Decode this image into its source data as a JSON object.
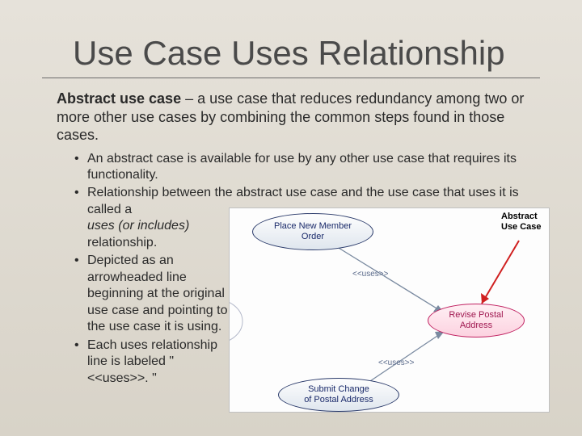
{
  "title": "Use Case Uses Relationship",
  "lead_bold": "Abstract use case",
  "lead_rest": " – a use case that reduces redundancy among two or more other use cases by combining the common steps found in those cases.",
  "bullets": {
    "b1": "An abstract case is available for use by any other use case that requires its functionality.",
    "b2a": "Relationship between the abstract use case and the use case that uses it is called a ",
    "b2_italic": "uses (or includes)",
    "b2b": " relationship.",
    "b3": "Depicted as an arrowheaded line beginning at the original use case and pointing to the use case it is using.",
    "b4": "Each uses relationship line is labeled \"<<uses>>. \""
  },
  "diagram": {
    "ovals": {
      "top": "Place New Member\nOrder",
      "right": "Revise Postal\nAddress",
      "bottom": "Submit Change\nof Postal Address"
    },
    "uses_label": "<<uses>>",
    "annotation": "Abstract\nUse Case",
    "colors": {
      "oval_border": "#2a3a6a",
      "oval_text": "#1a2a6a",
      "pink_border": "#c02060",
      "pink_text": "#a01850",
      "arrow_red": "#d02020",
      "line_gray": "#7a8aa0",
      "bg": "#fdfdfd"
    }
  }
}
